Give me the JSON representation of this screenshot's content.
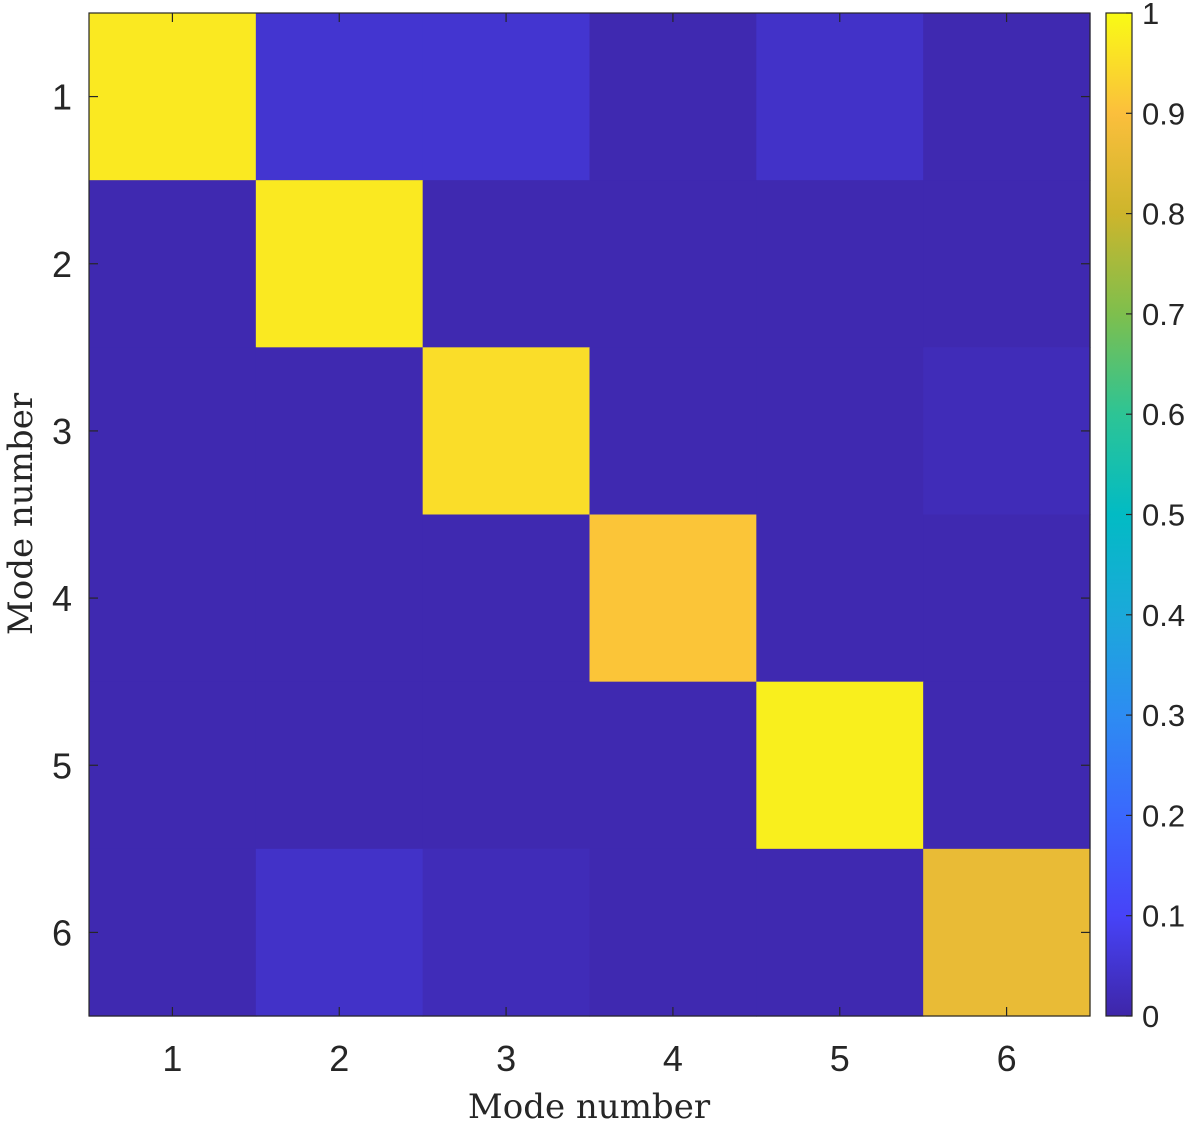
{
  "chart_data": {
    "type": "heatmap",
    "title": "",
    "xlabel": "Mode number",
    "ylabel": "Mode number",
    "x_categories": [
      "1",
      "2",
      "3",
      "4",
      "5",
      "6"
    ],
    "y_categories": [
      "1",
      "2",
      "3",
      "4",
      "5",
      "6"
    ],
    "values": [
      [
        0.97,
        0.05,
        0.05,
        0.01,
        0.04,
        0.01
      ],
      [
        0.01,
        0.97,
        0.01,
        0.01,
        0.01,
        0.01
      ],
      [
        0.01,
        0.01,
        0.95,
        0.01,
        0.01,
        0.02
      ],
      [
        0.01,
        0.01,
        0.01,
        0.91,
        0.01,
        0.01
      ],
      [
        0.01,
        0.01,
        0.01,
        0.01,
        0.98,
        0.01
      ],
      [
        0.01,
        0.04,
        0.02,
        0.01,
        0.01,
        0.86
      ]
    ],
    "colorbar": {
      "range": [
        0,
        1
      ],
      "ticks": [
        "0",
        "0.1",
        "0.2",
        "0.3",
        "0.4",
        "0.5",
        "0.6",
        "0.7",
        "0.8",
        "0.9",
        "1"
      ],
      "colormap": "parula"
    }
  }
}
